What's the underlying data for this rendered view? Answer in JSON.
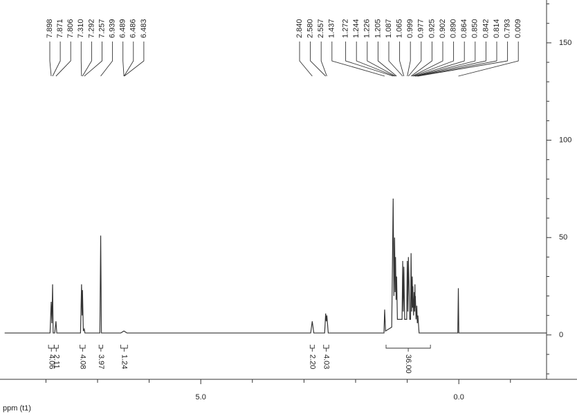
{
  "chart_data": {
    "type": "nmr",
    "x_label": "ppm (t1)",
    "xlim": [
      8.89,
      -1.7
    ],
    "ylim": [
      -22.8,
      172
    ],
    "xticks": [
      {
        "value": 5,
        "label": "5.0"
      },
      {
        "value": 0,
        "label": "0.0"
      }
    ],
    "xminorticks": [
      8,
      7,
      6,
      4,
      3,
      2,
      1,
      -1
    ],
    "yticks": [
      0,
      50,
      100,
      150
    ],
    "yminorticks": [
      -20,
      -10,
      10,
      20,
      30,
      40,
      60,
      70,
      80,
      90,
      110,
      120,
      130,
      140,
      160,
      170
    ],
    "color": "#333333",
    "x": [
      8.8,
      7.92,
      7.898,
      7.885,
      7.871,
      7.86,
      7.83,
      7.806,
      7.79,
      7.33,
      7.31,
      7.3,
      7.292,
      7.275,
      7.257,
      7.245,
      6.955,
      6.939,
      6.925,
      6.55,
      6.489,
      6.43,
      2.87,
      2.84,
      2.81,
      2.6,
      2.58,
      2.568,
      2.557,
      2.53,
      1.45,
      1.437,
      1.42,
      1.3,
      1.272,
      1.258,
      1.244,
      1.235,
      1.226,
      1.215,
      1.205,
      1.19,
      1.1,
      1.087,
      1.076,
      1.065,
      1.05,
      1.01,
      0.999,
      0.988,
      0.977,
      0.95,
      0.935,
      0.925,
      0.913,
      0.902,
      0.896,
      0.89,
      0.877,
      0.864,
      0.857,
      0.85,
      0.846,
      0.842,
      0.828,
      0.814,
      0.804,
      0.793,
      0.77,
      0.02,
      0.009,
      0.0,
      -1.7
    ],
    "values": [
      1,
      1,
      17,
      6,
      26,
      1,
      1,
      7,
      1,
      1,
      26,
      10,
      23,
      2,
      3,
      1,
      1,
      51,
      1,
      1,
      2,
      1,
      1,
      7,
      1,
      1,
      11,
      7,
      10,
      1,
      1,
      13,
      2,
      4,
      70,
      20,
      50,
      22,
      40,
      18,
      30,
      8,
      8,
      38,
      12,
      35,
      8,
      8,
      38,
      12,
      40,
      8,
      8,
      42,
      12,
      30,
      14,
      25,
      10,
      22,
      12,
      26,
      14,
      20,
      8,
      15,
      6,
      10,
      1,
      1,
      24,
      1,
      1
    ],
    "peak_labels": [
      [
        "7.898",
        "7.871",
        "7.806",
        "7.310",
        "7.292",
        "7.257",
        "6.939",
        "6.489",
        "6.486",
        "6.483"
      ],
      [
        "2.840",
        "2.580",
        "2.557",
        "1.437",
        "1.272",
        "1.244",
        "1.226",
        "1.205",
        "1.087",
        "1.065",
        "0.999",
        "0.977",
        "0.925",
        "0.902",
        "0.890",
        "0.864",
        "0.850",
        "0.842",
        "0.814",
        "0.793",
        "0.009"
      ]
    ],
    "integrals": [
      {
        "range": [
          7.95,
          7.84
        ],
        "label": "4.06"
      },
      {
        "range": [
          7.84,
          7.76
        ],
        "label": "2.11"
      },
      {
        "range": [
          7.34,
          7.24
        ],
        "label": "4.08"
      },
      {
        "range": [
          6.97,
          6.9
        ],
        "label": "3.97"
      },
      {
        "range": [
          6.55,
          6.42
        ],
        "label": "1.24"
      },
      {
        "range": [
          2.88,
          2.8
        ],
        "label": "2.20"
      },
      {
        "range": [
          2.62,
          2.52
        ],
        "label": "4.03"
      },
      {
        "range": [
          1.41,
          0.55
        ],
        "label": "36.00"
      }
    ]
  }
}
